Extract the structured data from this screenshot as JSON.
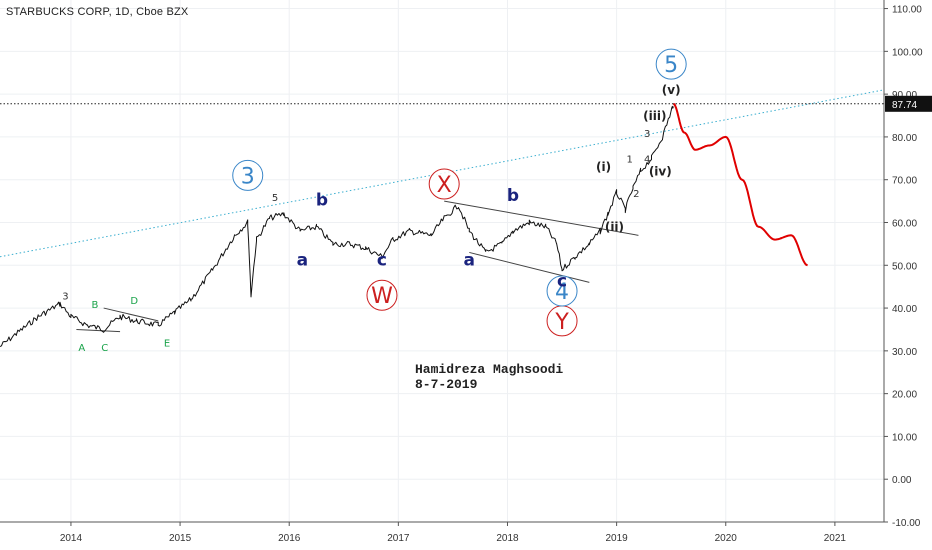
{
  "chart_data": {
    "type": "line",
    "title": "STARBUCKS CORP, 1D, Cboe BZX",
    "xlabel": "",
    "ylabel": "",
    "xlim": [
      2013.35,
      2021.45
    ],
    "ylim": [
      -10,
      112
    ],
    "x_ticks": [
      {
        "value": 2014,
        "label": "2014"
      },
      {
        "value": 2015,
        "label": "2015"
      },
      {
        "value": 2016,
        "label": "2016"
      },
      {
        "value": 2017,
        "label": "2017"
      },
      {
        "value": 2018,
        "label": "2018"
      },
      {
        "value": 2019,
        "label": "2019"
      },
      {
        "value": 2020,
        "label": "2020"
      },
      {
        "value": 2021,
        "label": "2021"
      }
    ],
    "y_ticks": [
      {
        "value": 110,
        "label": "110.00"
      },
      {
        "value": 100,
        "label": "100.00"
      },
      {
        "value": 90,
        "label": "90.00"
      },
      {
        "value": 80,
        "label": "80.00"
      },
      {
        "value": 70,
        "label": "70.00"
      },
      {
        "value": 60,
        "label": "60.00"
      },
      {
        "value": 50,
        "label": "50.00"
      },
      {
        "value": 40,
        "label": "40.00"
      },
      {
        "value": 30,
        "label": "30.00"
      },
      {
        "value": 20,
        "label": "20.00"
      },
      {
        "value": 10,
        "label": "10.00"
      },
      {
        "value": 0,
        "label": "0.00"
      },
      {
        "value": -10,
        "label": "-10.00"
      }
    ],
    "grid": true,
    "price_line": {
      "value": 87.74,
      "label": "87.74"
    },
    "series": [
      {
        "color": "#111111",
        "x": [
          2013.35,
          2013.5,
          2013.7,
          2013.9,
          2014.0,
          2014.15,
          2014.3,
          2014.45,
          2014.6,
          2014.8,
          2014.95,
          2015.1,
          2015.3,
          2015.5,
          2015.62,
          2015.65,
          2015.7,
          2015.82,
          2015.95,
          2016.1,
          2016.25,
          2016.4,
          2016.55,
          2016.7,
          2016.85,
          2016.95,
          2017.1,
          2017.3,
          2017.42,
          2017.55,
          2017.65,
          2017.8,
          2017.95,
          2018.05,
          2018.2,
          2018.35,
          2018.45,
          2018.5,
          2018.62,
          2018.75,
          2018.85,
          2018.92,
          2019.0,
          2019.08,
          2019.15,
          2019.22,
          2019.32,
          2019.42,
          2019.5,
          2019.52
        ],
        "y": [
          31,
          34,
          38,
          41,
          38,
          36,
          35,
          38,
          37,
          36,
          39,
          42,
          49,
          57,
          60,
          43,
          56,
          61,
          62,
          58,
          59,
          55,
          55,
          54,
          52,
          56,
          58,
          57,
          61,
          64,
          58,
          53,
          55,
          58,
          60,
          59,
          55,
          49,
          52,
          55,
          58,
          62,
          67,
          63,
          68,
          72,
          75,
          80,
          86,
          87.74
        ]
      },
      {
        "color": "#e00000",
        "x": [
          2019.52,
          2019.62,
          2019.72,
          2019.85,
          2020.0,
          2020.15,
          2020.3,
          2020.45,
          2020.6,
          2020.75
        ],
        "y": [
          87.74,
          81,
          77,
          78,
          80,
          70,
          59,
          56,
          57,
          50
        ]
      }
    ],
    "trendlines": [
      {
        "color": "#3aaecf",
        "style": "dotted",
        "x": [
          2013.35,
          2021.45
        ],
        "y": [
          52,
          91
        ]
      },
      {
        "color": "#444444",
        "style": "solid",
        "x": [
          2017.42,
          2019.2
        ],
        "y": [
          65,
          57
        ]
      },
      {
        "color": "#444444",
        "style": "solid",
        "x": [
          2017.65,
          2018.75
        ],
        "y": [
          53,
          46
        ]
      },
      {
        "color": "#444444",
        "style": "solid",
        "x": [
          2014.05,
          2014.45
        ],
        "y": [
          35,
          34.5
        ]
      },
      {
        "color": "#444444",
        "style": "solid",
        "x": [
          2014.3,
          2014.8
        ],
        "y": [
          40,
          37
        ]
      }
    ],
    "annotations": [
      {
        "text": "3",
        "x": 2015.62,
        "y": 71,
        "color": "#3a86c8",
        "style": "circle-large"
      },
      {
        "text": "5",
        "x": 2019.5,
        "y": 97,
        "color": "#3a86c8",
        "style": "circle-large"
      },
      {
        "text": "X",
        "x": 2017.42,
        "y": 69,
        "color": "#cc1f1f",
        "style": "circle-large"
      },
      {
        "text": "W",
        "x": 2016.85,
        "y": 43,
        "color": "#cc1f1f",
        "style": "circle-large"
      },
      {
        "text": "Y",
        "x": 2018.5,
        "y": 37,
        "color": "#cc1f1f",
        "style": "circle-large"
      },
      {
        "text": "4",
        "x": 2018.5,
        "y": 44,
        "color": "#3a86c8",
        "style": "circle-large"
      },
      {
        "text": "b",
        "x": 2016.3,
        "y": 64,
        "color": "#1a237e",
        "style": "bold"
      },
      {
        "text": "a",
        "x": 2016.12,
        "y": 50,
        "color": "#1a237e",
        "style": "bold"
      },
      {
        "text": "c",
        "x": 2016.85,
        "y": 50,
        "color": "#1a237e",
        "style": "bold"
      },
      {
        "text": "a",
        "x": 2017.65,
        "y": 50,
        "color": "#1a237e",
        "style": "bold"
      },
      {
        "text": "b",
        "x": 2018.05,
        "y": 65,
        "color": "#1a237e",
        "style": "bold"
      },
      {
        "text": "c",
        "x": 2018.5,
        "y": 45,
        "color": "#1a237e",
        "style": "bold"
      },
      {
        "text": "5",
        "x": 2015.87,
        "y": 65,
        "color": "#333333",
        "style": "small"
      },
      {
        "text": "3",
        "x": 2013.95,
        "y": 42,
        "color": "#333333",
        "style": "small"
      },
      {
        "text": "A",
        "x": 2014.1,
        "y": 30,
        "color": "#1aa34a",
        "style": "small"
      },
      {
        "text": "B",
        "x": 2014.22,
        "y": 40,
        "color": "#1aa34a",
        "style": "small"
      },
      {
        "text": "C",
        "x": 2014.31,
        "y": 30,
        "color": "#1aa34a",
        "style": "small"
      },
      {
        "text": "D",
        "x": 2014.58,
        "y": 41,
        "color": "#1aa34a",
        "style": "small"
      },
      {
        "text": "E",
        "x": 2014.88,
        "y": 31,
        "color": "#1aa34a",
        "style": "small"
      },
      {
        "text": "(i)",
        "x": 2018.88,
        "y": 72,
        "color": "#222222",
        "style": "paren"
      },
      {
        "text": "(ii)",
        "x": 2018.98,
        "y": 58,
        "color": "#222222",
        "style": "paren"
      },
      {
        "text": "(iii)",
        "x": 2019.35,
        "y": 84,
        "color": "#222222",
        "style": "paren"
      },
      {
        "text": "(iv)",
        "x": 2019.4,
        "y": 71,
        "color": "#222222",
        "style": "paren"
      },
      {
        "text": "(v)",
        "x": 2019.5,
        "y": 90,
        "color": "#222222",
        "style": "paren"
      },
      {
        "text": "1",
        "x": 2019.12,
        "y": 74,
        "color": "#333333",
        "style": "small"
      },
      {
        "text": "2",
        "x": 2019.18,
        "y": 66,
        "color": "#333333",
        "style": "small"
      },
      {
        "text": "3",
        "x": 2019.28,
        "y": 80,
        "color": "#333333",
        "style": "small"
      },
      {
        "text": "4",
        "x": 2019.28,
        "y": 74,
        "color": "#333333",
        "style": "small"
      }
    ]
  },
  "note": {
    "line1": "Hamidreza Maghsoodi",
    "line2": "8-7-2019"
  }
}
